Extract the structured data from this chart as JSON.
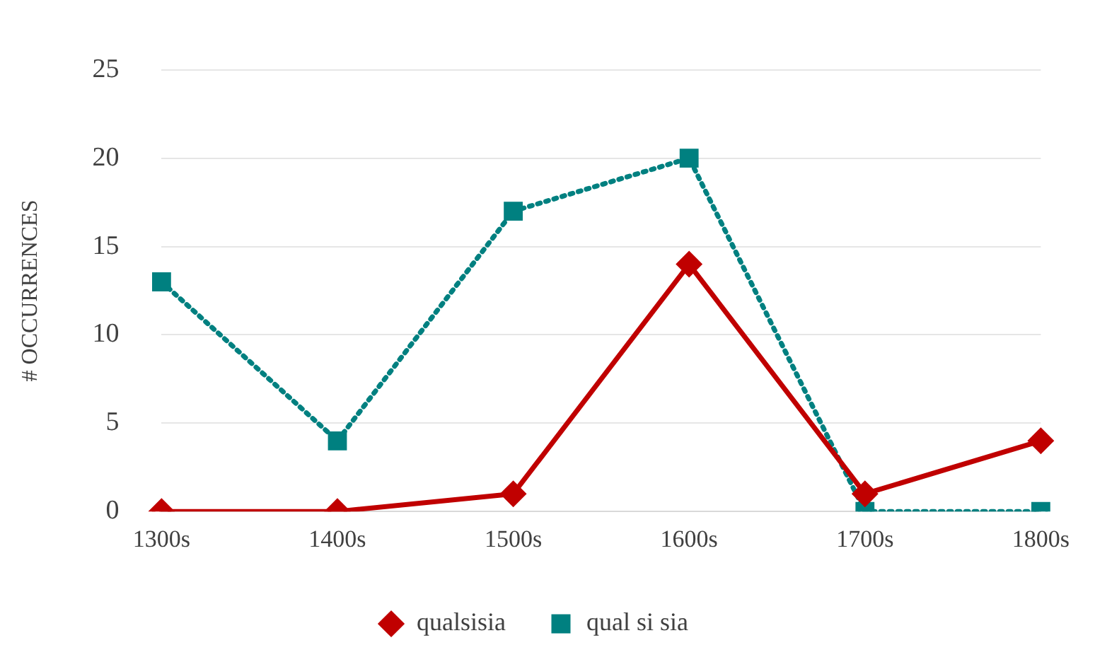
{
  "chart_data": {
    "type": "line",
    "ylabel": "# OCCURRENCES",
    "categories": [
      "1300s",
      "1400s",
      "1500s",
      "1600s",
      "1700s",
      "1800s"
    ],
    "series": [
      {
        "name": "qualsisia",
        "color": "#c00000",
        "values": [
          0,
          0,
          1,
          14,
          1,
          4
        ],
        "marker": "diamond",
        "line_style": "solid"
      },
      {
        "name": "qual si sia",
        "color": "#008080",
        "values": [
          13,
          4,
          17,
          20,
          0,
          0
        ],
        "marker": "square",
        "line_style": "dotted"
      }
    ],
    "ylim": [
      0,
      25
    ],
    "yticks": [
      0,
      5,
      10,
      15,
      20,
      25
    ],
    "grid": "y",
    "legend": "bottom"
  }
}
